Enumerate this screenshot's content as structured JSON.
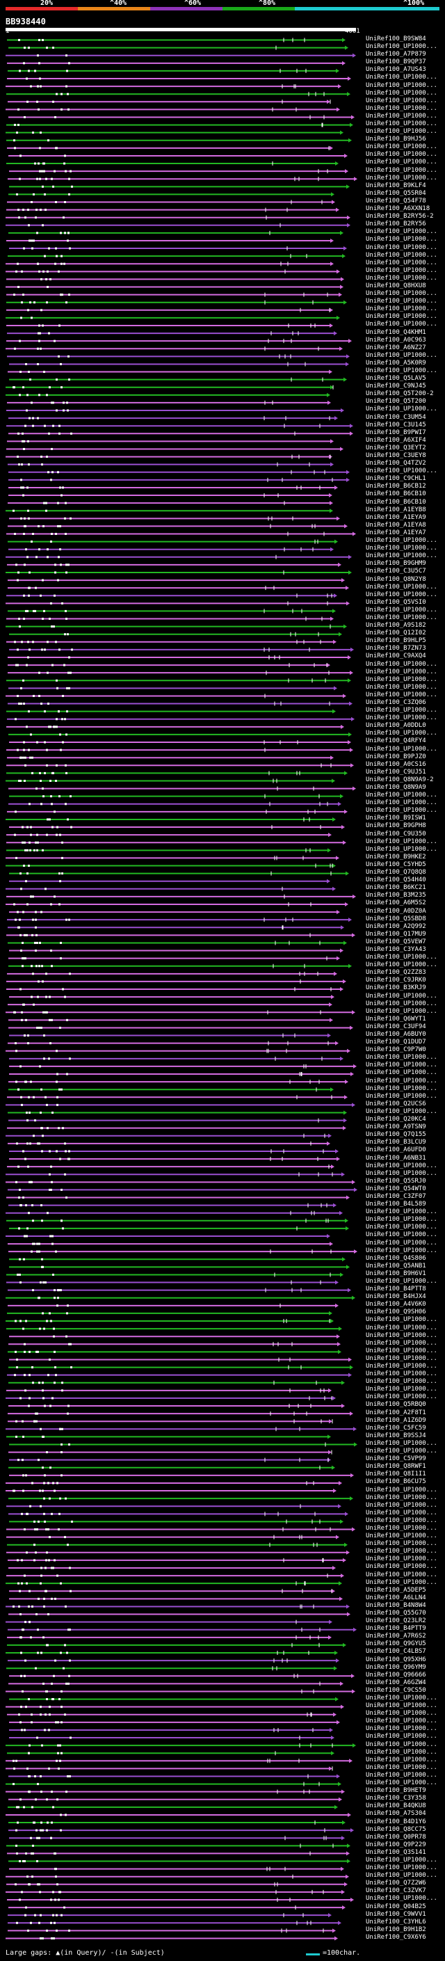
{
  "header": {
    "query_id": "BB938440",
    "start": "1",
    "end": "4061",
    "scale": [
      {
        "label": "20%",
        "color": "#e52a2a"
      },
      {
        "label": "^40%",
        "color": "#e8861a"
      },
      {
        "label": "^60%",
        "color": "#8e33b8"
      },
      {
        "label": "^80%",
        "color": "#19a819"
      },
      {
        "label": "^100%",
        "color": "#1ecbd0"
      }
    ]
  },
  "colors": {
    "green": "#22b822",
    "magenta": "#d46be0",
    "purple": "#9a4fd0",
    "white": "#ffffff"
  },
  "legend": {
    "gaps_text": "Large gaps: ▲(in Query)/ ‐(in Subject)",
    "scale_text": "=100char."
  },
  "hits": [
    "UniRef100_B9SW84",
    "UniRef100_UP1000...",
    "UniRef100_A7P879",
    "UniRef100_B9QP37",
    "UniRef100_A7US43",
    "UniRef100_UP1000...",
    "UniRef100_UP1000...",
    "UniRef100_UP1000...",
    "UniRef100_UP1000...",
    "UniRef100_UP1000...",
    "UniRef100_UP1000...",
    "UniRef100_UP1000...",
    "UniRef100_UP1000...",
    "UniRef100_B9HJ56",
    "UniRef100_UP1000...",
    "UniRef100_UP1000...",
    "UniRef100_UP1000...",
    "UniRef100_UP1000...",
    "UniRef100_UP1000...",
    "UniRef100_B9KLF4",
    "UniRef100_Q5SR04",
    "UniRef100_Q54F78",
    "UniRef100_A6XXN18",
    "UniRef100_B2RY56-2",
    "UniRef100_B2RY56",
    "UniRef100_UP1000...",
    "UniRef100_UP1000...",
    "UniRef100_UP1000...",
    "UniRef100_UP1000...",
    "UniRef100_UP1000...",
    "UniRef100_UP1000...",
    "UniRef100_UP1000...",
    "UniRef100_Q8HXU8",
    "UniRef100_UP1000...",
    "UniRef100_UP1000...",
    "UniRef100_UP1000...",
    "UniRef100_UP1000...",
    "UniRef100_UP1000...",
    "UniRef100_Q4KHM1",
    "UniRef100_A0C963",
    "UniRef100_A6NZ27",
    "UniRef100_UP1000...",
    "UniRef100_A5K0R9",
    "UniRef100_UP1000...",
    "UniRef100_Q5LAV5",
    "UniRef100_C9NJ45",
    "UniRef100_Q5T200-2",
    "UniRef100_Q5T200",
    "UniRef100_UP1000...",
    "UniRef100_C3UM54",
    "UniRef100_C3U145",
    "UniRef100_B9PWI7",
    "UniRef100_A6XIF4",
    "UniRef100_Q3EYT2",
    "UniRef100_C3UEY8",
    "UniRef100_Q4TZV2",
    "UniRef100_UP1000...",
    "UniRef100_C9CHL1",
    "UniRef100_B6CB12",
    "UniRef100_B6CB10",
    "UniRef100_B6CB10",
    "UniRef100_A1EYB8",
    "UniRef100_A1EYA9",
    "UniRef100_A1EYA8",
    "UniRef100_A1EYA7",
    "UniRef100_UP1000...",
    "UniRef100_UP1000...",
    "UniRef100_UP1000...",
    "UniRef100_B9GHM9",
    "UniRef100_C3U5C7",
    "UniRef100_Q8N2Y8",
    "UniRef100_UP1000...",
    "UniRef100_UP1000...",
    "UniRef100_Q5VSI0",
    "UniRef100_UP1000...",
    "UniRef100_UP1000...",
    "UniRef100_A9S182",
    "UniRef100_Q12I02",
    "UniRef100_B9HLP5",
    "UniRef100_B7ZN73",
    "UniRef100_C9AXQ4",
    "UniRef100_UP1000...",
    "UniRef100_UP1000...",
    "UniRef100_UP1000...",
    "UniRef100_UP1000...",
    "UniRef100_UP1000...",
    "UniRef100_C3ZQ06",
    "UniRef100_UP1000...",
    "UniRef100_UP1000...",
    "UniRef100_A0DDL0",
    "UniRef100_UP1000...",
    "UniRef100_Q4RFY4",
    "UniRef100_UP1000...",
    "UniRef100_B9PJZ0",
    "UniRef100_A0CS16",
    "UniRef100_C9UJ51",
    "UniRef100_Q8N9A9-2",
    "UniRef100_Q8N9A9",
    "UniRef100_UP1000...",
    "UniRef100_UP1000...",
    "UniRef100_UP1000...",
    "UniRef100_B9ISW1",
    "UniRef100_B9GPH8",
    "UniRef100_C9U350",
    "UniRef100_UP1000...",
    "UniRef100_UP1000...",
    "UniRef100_B9HKE2",
    "UniRef100_C5YHD5",
    "UniRef100_Q7Q8Q8",
    "UniRef100_Q54H40",
    "UniRef100_B6KC21",
    "UniRef100_B3M235",
    "UniRef100_A6M5S2",
    "UniRef100_A0DZ0A",
    "UniRef100_Q5SBD8",
    "UniRef100_A2Q992",
    "UniRef100_Q17MU9",
    "UniRef100_Q5VEW7",
    "UniRef100_C3YA43",
    "UniRef100_UP1000...",
    "UniRef100_UP1000...",
    "UniRef100_Q2ZZ83",
    "UniRef100_C9JRK0",
    "UniRef100_B3KRJ9",
    "UniRef100_UP1000...",
    "UniRef100_UP1000...",
    "UniRef100_UP1000...",
    "UniRef100_Q6WYT1",
    "UniRef100_C3UF94",
    "UniRef100_A6BUY0",
    "UniRef100_Q1DUD7",
    "UniRef100_C9P7W0",
    "UniRef100_UP1000...",
    "UniRef100_UP1000...",
    "UniRef100_UP1000...",
    "UniRef100_UP1000...",
    "UniRef100_UP1000...",
    "UniRef100_UP1000...",
    "UniRef100_Q2UCS6",
    "UniRef100_UP1000...",
    "UniRef100_Q20KC4",
    "UniRef100_A9TSN9",
    "UniRef100_Q7Q155",
    "UniRef100_B3LCU9",
    "UniRef100_A6UFD0",
    "UniRef100_A6NB31",
    "UniRef100_UP1000...",
    "UniRef100_UP1000...",
    "UniRef100_Q5SRJ0",
    "UniRef100_Q54WT0",
    "UniRef100_C3ZF07",
    "UniRef100_B4L589",
    "UniRef100_UP1000...",
    "UniRef100_UP1000...",
    "UniRef100_UP1000...",
    "UniRef100_UP1000...",
    "UniRef100_UP1000...",
    "UniRef100_UP1000...",
    "UniRef100_Q4S806",
    "UniRef100_Q5ANB1",
    "UniRef100_B9H6V1",
    "UniRef100_UP1000...",
    "UniRef100_B4PTT8",
    "UniRef100_B4HJX4",
    "UniRef100_A4V6K0",
    "UniRef100_Q9SH06",
    "UniRef100_UP1000...",
    "UniRef100_UP1000...",
    "UniRef100_UP1000...",
    "UniRef100_UP1000...",
    "UniRef100_UP1000...",
    "UniRef100_UP1000...",
    "UniRef100_UP1000...",
    "UniRef100_UP1000...",
    "UniRef100_UP1000...",
    "UniRef100_UP1000...",
    "UniRef100_UP1000...",
    "UniRef100_Q5RBQ0",
    "UniRef100_A2F8T1",
    "UniRef100_A1Z6D9",
    "UniRef100_C5FC59",
    "UniRef100_B9SSJ4",
    "UniRef100_UP1000...",
    "UniRef100_UP1000...",
    "UniRef100_C5VP99",
    "UniRef100_Q8RWF1",
    "UniRef100_Q8I1I1",
    "UniRef100_B6CU75",
    "UniRef100_UP1000...",
    "UniRef100_UP1000...",
    "UniRef100_UP1000...",
    "UniRef100_UP1000...",
    "UniRef100_UP1000...",
    "UniRef100_UP1000...",
    "UniRef100_UP1000...",
    "UniRef100_UP1000...",
    "UniRef100_UP1000...",
    "UniRef100_UP1000...",
    "UniRef100_UP1000...",
    "UniRef100_UP1000...",
    "UniRef100_UP1000...",
    "UniRef100_A5DEP5",
    "UniRef100_A6LLN4",
    "UniRef100_B4N8W4",
    "UniRef100_Q55G70",
    "UniRef100_Q23LR2",
    "UniRef100_B4PTT9",
    "UniRef100_A7R6S2",
    "UniRef100_Q9GYU5",
    "UniRef100_C4LBS7",
    "UniRef100_Q95XH6",
    "UniRef100_Q96YM9",
    "UniRef100_Q96666",
    "UniRef100_A6GZW4",
    "UniRef100_C9CS50",
    "UniRef100_UP1000...",
    "UniRef100_UP1000...",
    "UniRef100_UP1000...",
    "UniRef100_UP1000...",
    "UniRef100_UP1000...",
    "UniRef100_UP1000...",
    "UniRef100_UP1000...",
    "UniRef100_UP1000...",
    "UniRef100_UP1000...",
    "UniRef100_UP1000...",
    "UniRef100_UP1000...",
    "UniRef100_UP1000...",
    "UniRef100_B9HET9",
    "UniRef100_C3Y358",
    "UniRef100_B4QKU8",
    "UniRef100_A7S304",
    "UniRef100_B4D1Y6",
    "UniRef100_Q8CC75",
    "UniRef100_Q0PR78",
    "UniRef100_Q9P229",
    "UniRef100_Q3S141",
    "UniRef100_UP1000...",
    "UniRef100_UP1000...",
    "UniRef100_UP1000...",
    "UniRef100_Q7Z2W6",
    "UniRef100_C3ZVK7",
    "UniRef100_UP1000...",
    "UniRef100_Q04B25",
    "UniRef100_C9WVV1",
    "UniRef100_C3YHL6",
    "UniRef100_B9H1B2",
    "UniRef100_C9X6Y6"
  ]
}
